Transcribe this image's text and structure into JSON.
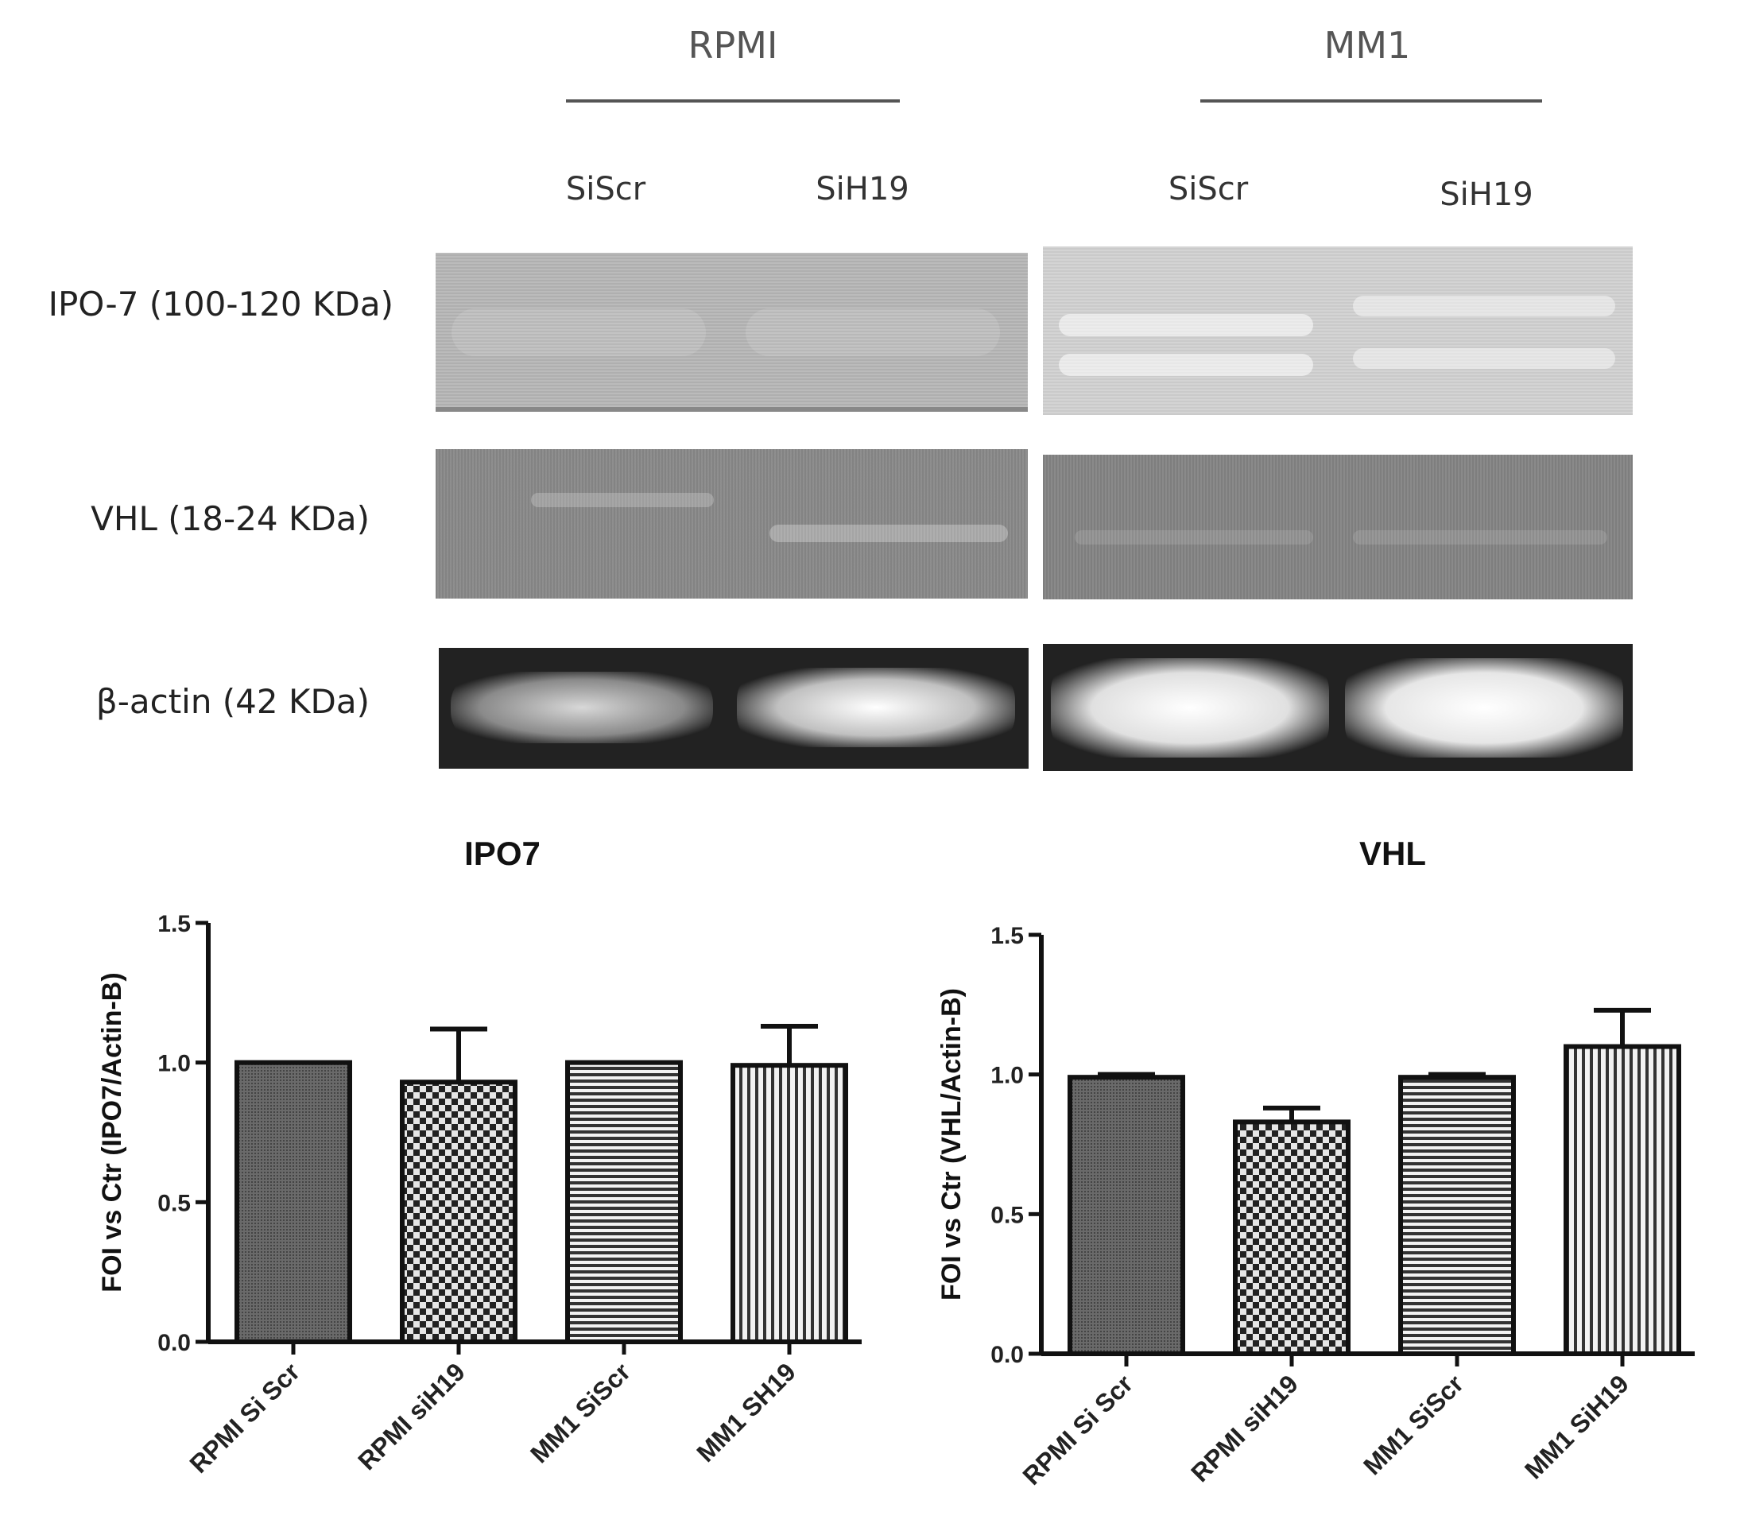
{
  "blot": {
    "groups": [
      {
        "name": "RPMI",
        "lanes": [
          "SiScr",
          "SiH19"
        ]
      },
      {
        "name": "MM1",
        "lanes": [
          "SiScr",
          "SiH19"
        ]
      }
    ],
    "rows": [
      {
        "label": "IPO-7 (100-120 KDa)"
      },
      {
        "label": "VHL (18-24 KDa)"
      },
      {
        "label": "β-actin (42 KDa)"
      }
    ]
  },
  "chart_data": [
    {
      "type": "bar",
      "title": "IPO7",
      "ylabel": "FOI vs Ctr (IPO7/Actin-B)",
      "xlabel": "",
      "categories": [
        "RPMI Si Scr",
        "RPMI siH19",
        "MM1 SiScr",
        "MM1 SH19"
      ],
      "values": [
        1.0,
        0.93,
        1.0,
        0.99
      ],
      "errors": [
        0.0,
        0.19,
        0.0,
        0.14
      ],
      "ylim": [
        0,
        1.5
      ],
      "yticks": [
        "0.0",
        "0.5",
        "1.0",
        "1.5"
      ],
      "grid": false,
      "patterns": [
        "dense-dots",
        "checker",
        "horizontal-lines",
        "vertical-lines"
      ]
    },
    {
      "type": "bar",
      "title": "VHL",
      "ylabel": "FOI vs Ctr (VHL/Actin-B)",
      "xlabel": "",
      "categories": [
        "RPMI Si Scr",
        "RPMI siH19",
        "MM1 SiScr",
        "MM1 SiH19"
      ],
      "values": [
        0.99,
        0.83,
        0.99,
        1.1
      ],
      "errors": [
        0.01,
        0.05,
        0.01,
        0.13
      ],
      "ylim": [
        0,
        1.5
      ],
      "yticks": [
        "0.0",
        "0.5",
        "1.0",
        "1.5"
      ],
      "grid": false,
      "patterns": [
        "dense-dots",
        "checker",
        "horizontal-lines",
        "vertical-lines"
      ]
    }
  ]
}
